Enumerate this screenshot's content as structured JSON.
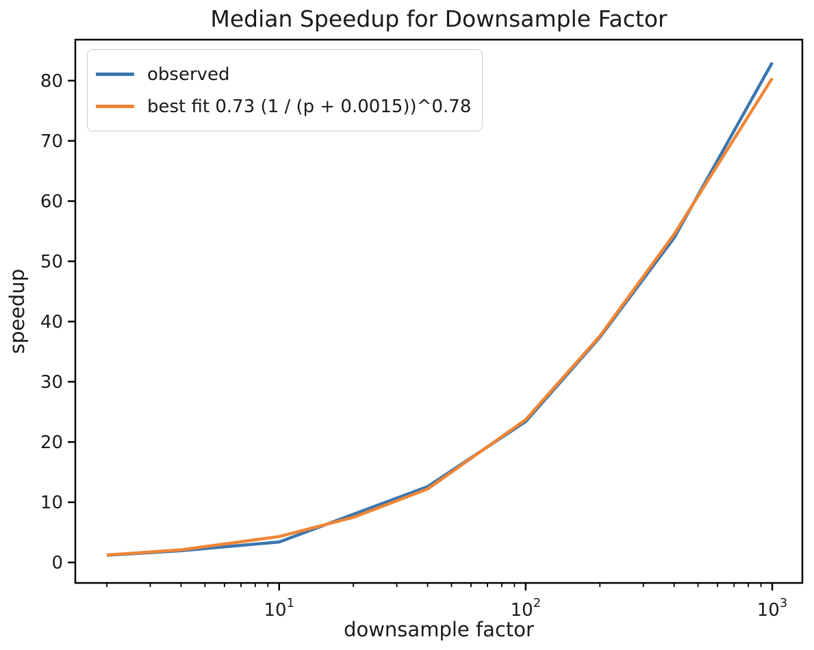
{
  "chart_data": {
    "type": "line",
    "title": "Median Speedup for Downsample Factor",
    "xlabel": "downsample factor",
    "ylabel": "speedup",
    "xscale": "log10",
    "xlim": [
      1.49,
      1325
    ],
    "ylim": [
      -3.4,
      86.8
    ],
    "grid": false,
    "legend_position": "upper left",
    "x": [
      2,
      4,
      10,
      20,
      40,
      100,
      200,
      400,
      1000
    ],
    "series": [
      {
        "name": "observed",
        "color": "#3b76af",
        "values": [
          1.2,
          1.95,
          3.4,
          8.0,
          12.6,
          23.4,
          37.4,
          53.9,
          83.0
        ]
      },
      {
        "name": "best fit 0.73 (1 / (p + 0.0015))^0.78",
        "color": "#ef8636",
        "values": [
          1.25,
          2.1,
          4.3,
          7.5,
          12.2,
          23.7,
          37.6,
          54.5,
          80.4
        ]
      }
    ],
    "yticks": {
      "values": [
        0,
        10,
        20,
        30,
        40,
        50,
        60,
        70,
        80
      ],
      "labels": [
        "0",
        "10",
        "20",
        "30",
        "40",
        "50",
        "60",
        "70",
        "80"
      ]
    },
    "xticks": {
      "values": [
        10,
        100,
        1000
      ],
      "labels": [
        "10^1",
        "10^2",
        "10^3"
      ]
    },
    "xminorticks": [
      2,
      3,
      4,
      5,
      6,
      7,
      8,
      9,
      20,
      30,
      40,
      50,
      60,
      70,
      80,
      90,
      200,
      300,
      400,
      500,
      600,
      700,
      800,
      900
    ]
  }
}
